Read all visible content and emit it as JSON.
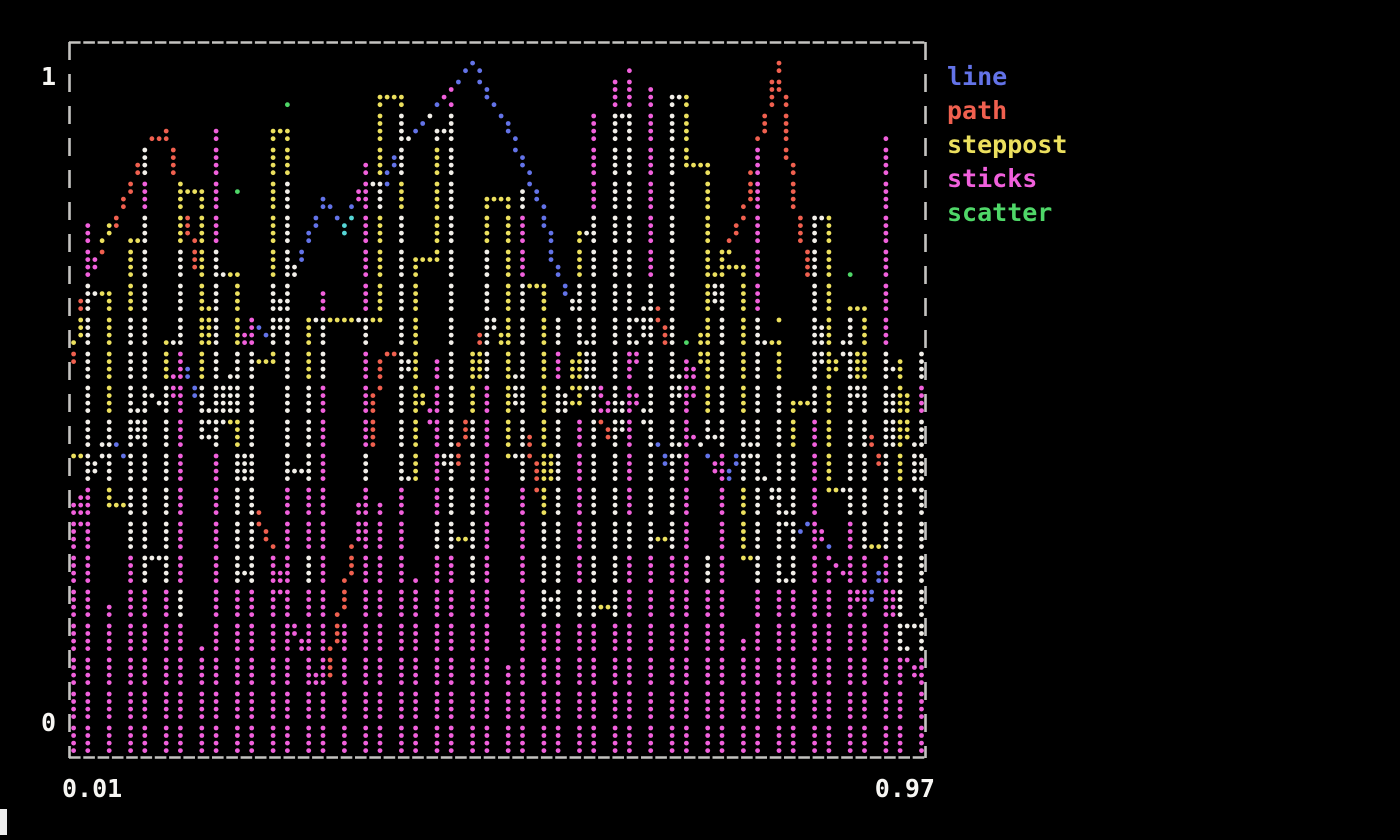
{
  "figure": {
    "background": "#000000",
    "border_color": "#c4c3c0",
    "label_color": "#f7f6f3"
  },
  "axes": {
    "y_max": "1",
    "y_min": "0",
    "x_min": "0.01",
    "x_max": "0.97"
  },
  "chart_data": {
    "type": "line",
    "styles_shown": [
      "line",
      "path",
      "steppost",
      "sticks",
      "scatter"
    ],
    "canvas": "braille-dot terminal canvas",
    "legend_position": "right",
    "grid": false,
    "xlim": [
      0.01,
      0.97
    ],
    "ylim": [
      0,
      1
    ],
    "x": [
      0.01,
      0.03,
      0.051,
      0.071,
      0.092,
      0.112,
      0.133,
      0.153,
      0.173,
      0.194,
      0.214,
      0.235,
      0.255,
      0.276,
      0.296,
      0.316,
      0.337,
      0.357,
      0.378,
      0.398,
      0.419,
      0.439,
      0.459,
      0.48,
      0.5,
      0.521,
      0.541,
      0.561,
      0.582,
      0.602,
      0.623,
      0.643,
      0.664,
      0.684,
      0.704,
      0.725,
      0.745,
      0.766,
      0.786,
      0.807,
      0.827,
      0.847,
      0.868,
      0.888,
      0.909,
      0.929,
      0.949,
      0.97
    ],
    "series": [
      {
        "name": "line",
        "style": "line",
        "color": "#6373e8",
        "code": 4,
        "values": [
          0.3,
          0.38,
          0.45,
          0.41,
          0.52,
          0.48,
          0.56,
          0.5,
          0.44,
          0.55,
          0.62,
          0.58,
          0.66,
          0.72,
          0.78,
          0.75,
          0.82,
          0.8,
          0.85,
          0.88,
          0.91,
          0.94,
          0.97,
          0.93,
          0.89,
          0.83,
          0.76,
          0.68,
          0.6,
          0.53,
          0.47,
          0.52,
          0.45,
          0.4,
          0.46,
          0.42,
          0.37,
          0.44,
          0.4,
          0.35,
          0.3,
          0.34,
          0.28,
          0.24,
          0.2,
          0.26,
          0.16,
          0.1
        ]
      },
      {
        "name": "path",
        "style": "path",
        "color": "#f0604f",
        "code": 1,
        "values": [
          0.55,
          0.68,
          0.74,
          0.8,
          0.86,
          0.88,
          0.78,
          0.66,
          0.54,
          0.44,
          0.36,
          0.28,
          0.2,
          0.12,
          0.08,
          0.22,
          0.38,
          0.55,
          0.58,
          0.52,
          0.44,
          0.38,
          0.5,
          0.63,
          0.55,
          0.47,
          0.35,
          0.46,
          0.58,
          0.5,
          0.42,
          0.53,
          0.65,
          0.56,
          0.48,
          0.62,
          0.7,
          0.76,
          0.86,
          0.97,
          0.8,
          0.64,
          0.52,
          0.6,
          0.46,
          0.38,
          0.55,
          0.32
        ]
      },
      {
        "name": "steppost",
        "style": "steppost",
        "color": "#ece05e",
        "code": 3,
        "values": [
          0.42,
          0.65,
          0.35,
          0.72,
          0.28,
          0.58,
          0.8,
          0.45,
          0.68,
          0.25,
          0.55,
          0.88,
          0.4,
          0.62,
          0.62,
          0.62,
          0.62,
          0.93,
          0.39,
          0.7,
          0.88,
          0.3,
          0.57,
          0.78,
          0.42,
          0.66,
          0.22,
          0.5,
          0.73,
          0.2,
          0.9,
          0.62,
          0.3,
          0.93,
          0.83,
          0.44,
          0.69,
          0.28,
          0.58,
          0.24,
          0.49,
          0.76,
          0.37,
          0.63,
          0.29,
          0.54,
          0.18,
          0.47
        ]
      },
      {
        "name": "sticks",
        "style": "sticks",
        "color": "#f160dc",
        "code": 5,
        "values": [
          0.35,
          0.75,
          0.2,
          0.58,
          0.85,
          0.45,
          0.68,
          0.15,
          0.88,
          0.38,
          0.6,
          0.27,
          0.78,
          0.5,
          0.65,
          0.18,
          0.83,
          0.35,
          0.72,
          0.24,
          0.55,
          0.92,
          0.43,
          0.7,
          0.12,
          0.8,
          0.3,
          0.62,
          0.47,
          0.9,
          0.95,
          0.96,
          0.94,
          0.93,
          0.55,
          0.28,
          0.66,
          0.16,
          0.84,
          0.52,
          0.4,
          0.73,
          0.25,
          0.61,
          0.48,
          0.87,
          0.36,
          0.57
        ]
      },
      {
        "name": "scatter",
        "style": "scatter",
        "color": "#4fd768",
        "code": 2,
        "values": [
          0.58,
          0.42,
          0.75,
          0.3,
          0.86,
          0.51,
          0.22,
          0.67,
          0.44,
          0.79,
          0.35,
          0.6,
          0.91,
          0.27,
          0.55,
          0.73,
          0.4,
          0.8,
          0.48,
          0.65,
          0.33,
          0.7,
          0.25,
          0.57,
          0.45,
          0.78,
          0.38,
          0.62,
          0.2,
          0.52,
          0.73,
          0.31,
          0.66,
          0.47,
          0.58,
          0.28,
          0.71,
          0.43,
          0.36,
          0.61,
          0.24,
          0.53,
          0.45,
          0.68,
          0.37,
          0.5,
          0.29,
          0.56
        ]
      }
    ],
    "blend_palette": {
      "1": "#f0604f",
      "2": "#4fd768",
      "3": "#ece05e",
      "4": "#6373e8",
      "5": "#f160dc",
      "6": "#56d6d6",
      "7": "#f2efe9"
    }
  }
}
